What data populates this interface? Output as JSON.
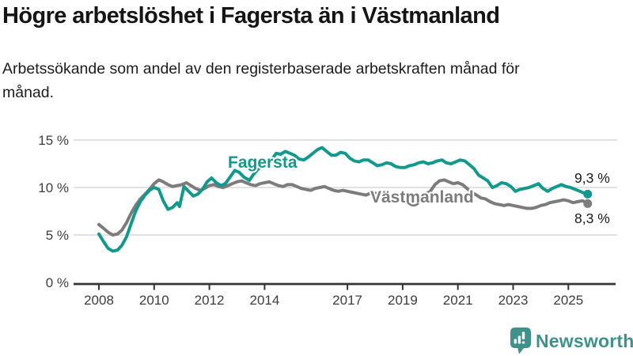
{
  "header": {
    "title": "Högre arbetslöshet i Fagersta än i Västmanland",
    "subtitle": "Arbetssökande som andel av den registerbaserade arbetskraften månad för månad."
  },
  "branding": {
    "logo_text": "Newsworthy"
  },
  "colors": {
    "fagersta": "#12998c",
    "vastmanland": "#7c7c7c",
    "grid": "#d9d9d9",
    "axis": "#333333",
    "tick_text": "#3d3d3d",
    "value_text": "#1a1a1a",
    "brand": "#3f918a"
  },
  "chart_data": {
    "type": "line",
    "title": "Högre arbetslöshet i Fagersta än i Västmanland",
    "subtitle": "Arbetssökande som andel av den registerbaserade arbetskraften månad för månad.",
    "xlabel": "",
    "ylabel": "%",
    "ylim": [
      0,
      16
    ],
    "xlim": [
      2007.1,
      2026.7
    ],
    "grid": true,
    "legend_position": "inline-labels",
    "y_ticks": [
      {
        "value": 15,
        "label": "15 %"
      },
      {
        "value": 10,
        "label": "10 %"
      },
      {
        "value": 5,
        "label": "5 %"
      },
      {
        "value": 0,
        "label": "0 %"
      }
    ],
    "x_ticks": [
      {
        "year": 2008,
        "label": "2008"
      },
      {
        "year": 2010,
        "label": "2010"
      },
      {
        "year": 2012,
        "label": "2012"
      },
      {
        "year": 2014,
        "label": "2014"
      },
      {
        "year": 2017,
        "label": "2017"
      },
      {
        "year": 2019,
        "label": "2019"
      },
      {
        "year": 2021,
        "label": "2021"
      },
      {
        "year": 2023,
        "label": "2023"
      },
      {
        "year": 2025,
        "label": "2025"
      }
    ],
    "series": [
      {
        "name": "Fagersta",
        "color": "#12998c",
        "end_value": 9.3,
        "end_label": "9,3 %",
        "points": [
          [
            2008.0,
            5.1
          ],
          [
            2008.17,
            4.3
          ],
          [
            2008.33,
            3.6
          ],
          [
            2008.5,
            3.3
          ],
          [
            2008.67,
            3.4
          ],
          [
            2008.83,
            3.9
          ],
          [
            2009.0,
            4.8
          ],
          [
            2009.17,
            6.2
          ],
          [
            2009.33,
            7.5
          ],
          [
            2009.5,
            8.5
          ],
          [
            2009.67,
            9.2
          ],
          [
            2009.83,
            9.7
          ],
          [
            2010.0,
            10.0
          ],
          [
            2010.17,
            9.8
          ],
          [
            2010.33,
            8.6
          ],
          [
            2010.5,
            7.7
          ],
          [
            2010.67,
            7.9
          ],
          [
            2010.83,
            8.4
          ],
          [
            2010.92,
            8.0
          ],
          [
            2011.08,
            10.1
          ],
          [
            2011.25,
            9.6
          ],
          [
            2011.42,
            9.1
          ],
          [
            2011.58,
            9.3
          ],
          [
            2011.75,
            9.8
          ],
          [
            2011.92,
            10.6
          ],
          [
            2012.08,
            11.0
          ],
          [
            2012.25,
            10.5
          ],
          [
            2012.42,
            10.2
          ],
          [
            2012.58,
            10.4
          ],
          [
            2012.75,
            11.1
          ],
          [
            2012.92,
            11.8
          ],
          [
            2013.08,
            11.6
          ],
          [
            2013.25,
            11.1
          ],
          [
            2013.45,
            10.75
          ],
          [
            2013.58,
            11.3
          ],
          [
            2013.75,
            11.9
          ],
          [
            2013.92,
            12.3
          ],
          [
            2014.08,
            12.4
          ],
          [
            2014.25,
            12.9
          ],
          [
            2014.42,
            13.6
          ],
          [
            2014.58,
            13.5
          ],
          [
            2014.75,
            13.8
          ],
          [
            2014.92,
            13.6
          ],
          [
            2015.08,
            13.4
          ],
          [
            2015.25,
            13.0
          ],
          [
            2015.42,
            12.9
          ],
          [
            2015.58,
            13.2
          ],
          [
            2015.75,
            13.6
          ],
          [
            2015.92,
            14.0
          ],
          [
            2016.08,
            14.2
          ],
          [
            2016.25,
            13.8
          ],
          [
            2016.42,
            13.4
          ],
          [
            2016.58,
            13.4
          ],
          [
            2016.75,
            13.7
          ],
          [
            2016.92,
            13.6
          ],
          [
            2017.08,
            13.1
          ],
          [
            2017.25,
            12.8
          ],
          [
            2017.42,
            12.7
          ],
          [
            2017.58,
            12.9
          ],
          [
            2017.75,
            12.9
          ],
          [
            2017.92,
            12.6
          ],
          [
            2018.08,
            12.3
          ],
          [
            2018.25,
            12.4
          ],
          [
            2018.42,
            12.6
          ],
          [
            2018.58,
            12.5
          ],
          [
            2018.75,
            12.2
          ],
          [
            2018.92,
            12.1
          ],
          [
            2019.08,
            12.1
          ],
          [
            2019.25,
            12.3
          ],
          [
            2019.42,
            12.4
          ],
          [
            2019.58,
            12.6
          ],
          [
            2019.75,
            12.7
          ],
          [
            2019.92,
            12.5
          ],
          [
            2020.08,
            12.6
          ],
          [
            2020.25,
            12.8
          ],
          [
            2020.42,
            12.9
          ],
          [
            2020.58,
            12.6
          ],
          [
            2020.75,
            12.5
          ],
          [
            2020.92,
            12.7
          ],
          [
            2021.08,
            12.9
          ],
          [
            2021.25,
            12.8
          ],
          [
            2021.42,
            12.4
          ],
          [
            2021.58,
            12.0
          ],
          [
            2021.75,
            11.3
          ],
          [
            2021.92,
            11.0
          ],
          [
            2022.08,
            10.7
          ],
          [
            2022.25,
            10.0
          ],
          [
            2022.42,
            10.2
          ],
          [
            2022.58,
            10.5
          ],
          [
            2022.75,
            10.4
          ],
          [
            2022.92,
            10.1
          ],
          [
            2023.08,
            9.6
          ],
          [
            2023.25,
            9.8
          ],
          [
            2023.42,
            9.9
          ],
          [
            2023.58,
            10.0
          ],
          [
            2023.75,
            10.2
          ],
          [
            2023.92,
            10.4
          ],
          [
            2024.08,
            9.9
          ],
          [
            2024.25,
            9.6
          ],
          [
            2024.42,
            9.9
          ],
          [
            2024.58,
            10.1
          ],
          [
            2024.75,
            10.3
          ],
          [
            2024.92,
            10.1
          ],
          [
            2025.08,
            10.0
          ],
          [
            2025.25,
            9.8
          ],
          [
            2025.42,
            9.6
          ],
          [
            2025.58,
            9.4
          ],
          [
            2025.7,
            9.3
          ]
        ]
      },
      {
        "name": "Västmanland",
        "color": "#7c7c7c",
        "end_value": 8.3,
        "end_label": "8,3 %",
        "points": [
          [
            2008.0,
            6.1
          ],
          [
            2008.17,
            5.7
          ],
          [
            2008.33,
            5.3
          ],
          [
            2008.5,
            5.0
          ],
          [
            2008.67,
            5.1
          ],
          [
            2008.83,
            5.5
          ],
          [
            2009.0,
            6.3
          ],
          [
            2009.17,
            7.3
          ],
          [
            2009.33,
            8.1
          ],
          [
            2009.5,
            8.8
          ],
          [
            2009.67,
            9.3
          ],
          [
            2009.83,
            9.8
          ],
          [
            2010.0,
            10.4
          ],
          [
            2010.17,
            10.8
          ],
          [
            2010.33,
            10.6
          ],
          [
            2010.5,
            10.3
          ],
          [
            2010.67,
            10.1
          ],
          [
            2010.83,
            10.2
          ],
          [
            2011.0,
            10.3
          ],
          [
            2011.17,
            10.5
          ],
          [
            2011.33,
            10.2
          ],
          [
            2011.5,
            9.9
          ],
          [
            2011.67,
            9.7
          ],
          [
            2011.83,
            9.9
          ],
          [
            2012.0,
            10.2
          ],
          [
            2012.17,
            10.3
          ],
          [
            2012.33,
            10.1
          ],
          [
            2012.5,
            10.0
          ],
          [
            2012.67,
            10.2
          ],
          [
            2012.83,
            10.4
          ],
          [
            2013.0,
            10.6
          ],
          [
            2013.17,
            10.7
          ],
          [
            2013.33,
            10.5
          ],
          [
            2013.5,
            10.3
          ],
          [
            2013.67,
            10.2
          ],
          [
            2013.83,
            10.4
          ],
          [
            2014.0,
            10.5
          ],
          [
            2014.17,
            10.6
          ],
          [
            2014.33,
            10.4
          ],
          [
            2014.5,
            10.2
          ],
          [
            2014.67,
            10.1
          ],
          [
            2014.83,
            10.3
          ],
          [
            2015.0,
            10.3
          ],
          [
            2015.17,
            10.1
          ],
          [
            2015.33,
            9.9
          ],
          [
            2015.5,
            9.8
          ],
          [
            2015.67,
            9.7
          ],
          [
            2015.83,
            9.9
          ],
          [
            2016.0,
            10.0
          ],
          [
            2016.17,
            10.1
          ],
          [
            2016.33,
            9.9
          ],
          [
            2016.5,
            9.7
          ],
          [
            2016.67,
            9.6
          ],
          [
            2016.83,
            9.7
          ],
          [
            2017.0,
            9.6
          ],
          [
            2017.17,
            9.5
          ],
          [
            2017.33,
            9.4
          ],
          [
            2017.5,
            9.3
          ],
          [
            2017.67,
            9.2
          ],
          [
            2017.83,
            9.4
          ],
          [
            2018.0,
            9.4
          ],
          [
            2018.17,
            9.3
          ],
          [
            2018.33,
            9.2
          ],
          [
            2018.5,
            9.1
          ],
          [
            2018.67,
            9.0
          ],
          [
            2018.83,
            8.9
          ],
          [
            2019.0,
            8.8
          ],
          [
            2019.17,
            8.6
          ],
          [
            2019.33,
            8.7
          ],
          [
            2019.5,
            8.9
          ],
          [
            2019.67,
            9.1
          ],
          [
            2019.83,
            9.3
          ],
          [
            2020.0,
            9.6
          ],
          [
            2020.17,
            10.3
          ],
          [
            2020.33,
            10.7
          ],
          [
            2020.5,
            10.8
          ],
          [
            2020.67,
            10.6
          ],
          [
            2020.83,
            10.4
          ],
          [
            2021.0,
            10.5
          ],
          [
            2021.17,
            10.3
          ],
          [
            2021.33,
            9.9
          ],
          [
            2021.5,
            9.5
          ],
          [
            2021.67,
            9.2
          ],
          [
            2021.83,
            8.9
          ],
          [
            2022.0,
            8.8
          ],
          [
            2022.17,
            8.5
          ],
          [
            2022.33,
            8.3
          ],
          [
            2022.5,
            8.2
          ],
          [
            2022.67,
            8.1
          ],
          [
            2022.83,
            8.2
          ],
          [
            2023.0,
            8.1
          ],
          [
            2023.17,
            8.0
          ],
          [
            2023.33,
            7.9
          ],
          [
            2023.5,
            7.8
          ],
          [
            2023.67,
            7.8
          ],
          [
            2023.83,
            7.9
          ],
          [
            2024.0,
            8.1
          ],
          [
            2024.17,
            8.2
          ],
          [
            2024.33,
            8.4
          ],
          [
            2024.5,
            8.5
          ],
          [
            2024.67,
            8.6
          ],
          [
            2024.83,
            8.7
          ],
          [
            2025.0,
            8.6
          ],
          [
            2025.17,
            8.4
          ],
          [
            2025.33,
            8.5
          ],
          [
            2025.5,
            8.6
          ],
          [
            2025.6,
            8.5
          ],
          [
            2025.7,
            8.3
          ]
        ]
      }
    ]
  }
}
